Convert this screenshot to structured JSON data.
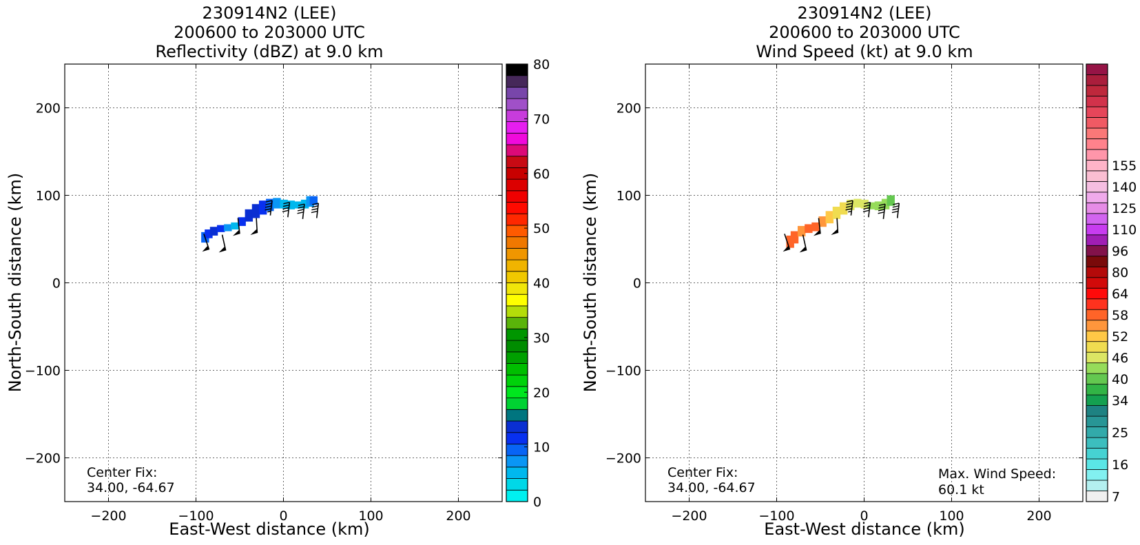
{
  "chart_data": [
    {
      "type": "heatmap",
      "title_lines": [
        "230914N2 (LEE)",
        "200600 to 203000 UTC",
        "Reflectivity (dBZ) at 9.0 km"
      ],
      "xlabel": "East-West distance (km)",
      "ylabel": "North-South distance (km)",
      "xlim": [
        -250,
        250
      ],
      "ylim": [
        -250,
        250
      ],
      "x_ticks": [
        -200,
        -100,
        0,
        100,
        200
      ],
      "y_ticks": [
        -200,
        -100,
        0,
        100,
        200
      ],
      "x_tick_labels": [
        "−200",
        "−100",
        "0",
        "100",
        "200"
      ],
      "y_tick_labels": [
        "−200",
        "−100",
        "0",
        "100",
        "200"
      ],
      "grid": true,
      "colorbar": {
        "min": 0,
        "max": 80,
        "ticks": [
          0,
          10,
          20,
          30,
          40,
          50,
          60,
          70,
          80
        ],
        "tick_labels": [
          "0",
          "10",
          "20",
          "30",
          "40",
          "50",
          "60",
          "70",
          "80"
        ],
        "colors": [
          "#00f0f0",
          "#00d8e8",
          "#00b8ee",
          "#0a96f5",
          "#0864f5",
          "#0830f0",
          "#0a2fd2",
          "#00757f",
          "#00d232",
          "#00e61e",
          "#00d20a",
          "#00be00",
          "#00a000",
          "#008c00",
          "#009600",
          "#5ab40a",
          "#b4dc0a",
          "#ffff00",
          "#f0e60a",
          "#f0c800",
          "#f0b400",
          "#f09600",
          "#f07800",
          "#ff5a00",
          "#ff2800",
          "#ff0a00",
          "#f00000",
          "#dc0000",
          "#c80000",
          "#c80a14",
          "#dc0a78",
          "#f00adc",
          "#e61ef0",
          "#c83cdc",
          "#a050c8",
          "#7846aa",
          "#46285a",
          "#000000"
        ]
      },
      "echo_swath": {
        "points": [
          [
            -90,
            52
          ],
          [
            -86,
            56
          ],
          [
            -80,
            59
          ],
          [
            -72,
            62
          ],
          [
            -64,
            63
          ],
          [
            -56,
            65
          ],
          [
            -48,
            70
          ],
          [
            -40,
            77
          ],
          [
            -32,
            82
          ],
          [
            -24,
            86
          ],
          [
            -16,
            89
          ],
          [
            -8,
            91
          ],
          [
            0,
            90
          ],
          [
            8,
            89
          ],
          [
            16,
            89
          ],
          [
            24,
            90
          ],
          [
            30,
            93
          ],
          [
            34,
            94
          ]
        ],
        "values": [
          10,
          12,
          14,
          11,
          8,
          6,
          12,
          14,
          13,
          11,
          9,
          8,
          6,
          5,
          5,
          6,
          8,
          10
        ],
        "half_width": [
          6,
          5,
          5,
          4,
          4,
          4,
          5,
          7,
          8,
          8,
          7,
          6,
          5,
          5,
          4,
          5,
          6,
          5
        ]
      },
      "annotation_left": {
        "line1": "Center Fix:",
        "line2": "34.00, -64.67"
      }
    },
    {
      "type": "heatmap",
      "title_lines": [
        "230914N2 (LEE)",
        "200600 to 203000 UTC",
        "Wind Speed (kt) at 9.0 km"
      ],
      "xlabel": "East-West distance (km)",
      "ylabel": "North-South distance (km)",
      "xlim": [
        -250,
        250
      ],
      "ylim": [
        -250,
        250
      ],
      "x_ticks": [
        -200,
        -100,
        0,
        100,
        200
      ],
      "y_ticks": [
        -200,
        -100,
        0,
        100,
        200
      ],
      "x_tick_labels": [
        "−200",
        "−100",
        "0",
        "100",
        "200"
      ],
      "y_tick_labels": [
        "−200",
        "−100",
        "0",
        "100",
        "200"
      ],
      "grid": true,
      "colorbar": {
        "tick_labels": [
          "7",
          "16",
          "25",
          "34",
          "40",
          "46",
          "52",
          "58",
          "64",
          "80",
          "96",
          "110",
          "125",
          "140",
          "155"
        ],
        "tick_band_index": [
          0,
          3,
          6,
          9,
          11,
          13,
          15,
          17,
          19,
          21,
          23,
          25,
          27,
          29,
          31
        ],
        "colors": [
          "#f0f0f0",
          "#b4f0f0",
          "#82f0f0",
          "#5ae6e6",
          "#46d2d2",
          "#3cbebe",
          "#32aaaa",
          "#289696",
          "#1e8282",
          "#14a050",
          "#32b446",
          "#64c850",
          "#96dc5a",
          "#dce664",
          "#f0dc50",
          "#ffc846",
          "#ff963c",
          "#ff6428",
          "#ff321e",
          "#ff0a0a",
          "#d20a0a",
          "#b40a0a",
          "#7a0a0a",
          "#82124a",
          "#a01eb4",
          "#c83cf0",
          "#d264f0",
          "#e68ce6",
          "#f0aaeb",
          "#f5bee1",
          "#fabed2",
          "#ffb4c8",
          "#ff96aa",
          "#ff828c",
          "#fa7878",
          "#f05a64",
          "#e6465a",
          "#d2324b",
          "#be283c",
          "#aa1e3c",
          "#961446"
        ],
        "band_count": 41
      },
      "wind_swath": {
        "points": [
          [
            -85,
            47
          ],
          [
            -80,
            52
          ],
          [
            -72,
            59
          ],
          [
            -64,
            62
          ],
          [
            -56,
            64
          ],
          [
            -48,
            70
          ],
          [
            -40,
            75
          ],
          [
            -32,
            80
          ],
          [
            -24,
            85
          ],
          [
            -16,
            89
          ],
          [
            -8,
            91
          ],
          [
            0,
            90
          ],
          [
            8,
            88
          ],
          [
            16,
            88
          ],
          [
            24,
            90
          ],
          [
            30,
            94
          ]
        ],
        "values": [
          58,
          58,
          56,
          57,
          58,
          54,
          52,
          50,
          48,
          46,
          46,
          45,
          44,
          43,
          42,
          41
        ],
        "half_width": [
          7,
          7,
          6,
          5,
          5,
          6,
          7,
          7,
          7,
          6,
          5,
          5,
          4,
          5,
          6,
          6
        ]
      },
      "annotation_left": {
        "line1": "Center Fix:",
        "line2": "34.00, -64.67"
      },
      "annotation_right": {
        "line1": "Max. Wind Speed:",
        "line2": "60.1 kt"
      }
    }
  ],
  "barbs": [
    {
      "x": -85,
      "y": 38,
      "base_dx": -6,
      "base_dy": 18,
      "flags": 1,
      "full": 0,
      "half": 0
    },
    {
      "x": -66,
      "y": 37,
      "base_dx": -4,
      "base_dy": 18,
      "flags": 1,
      "full": 0,
      "half": 0
    },
    {
      "x": -50,
      "y": 56,
      "base_dx": -2,
      "base_dy": 18,
      "flags": 1,
      "full": 0,
      "half": 0
    },
    {
      "x": -30,
      "y": 57,
      "base_dx": -1,
      "base_dy": 17,
      "flags": 1,
      "full": 0,
      "half": 0
    },
    {
      "x": -15,
      "y": 77,
      "base_dx": 2,
      "base_dy": 17,
      "flags": 0,
      "full": 4,
      "half": 1
    },
    {
      "x": 5,
      "y": 75,
      "base_dx": 2,
      "base_dy": 17,
      "flags": 0,
      "full": 4,
      "half": 0
    },
    {
      "x": 22,
      "y": 73,
      "base_dx": 2,
      "base_dy": 17,
      "flags": 0,
      "full": 4,
      "half": 0
    },
    {
      "x": 38,
      "y": 74,
      "base_dx": 2,
      "base_dy": 17,
      "flags": 0,
      "full": 4,
      "half": 0
    }
  ]
}
